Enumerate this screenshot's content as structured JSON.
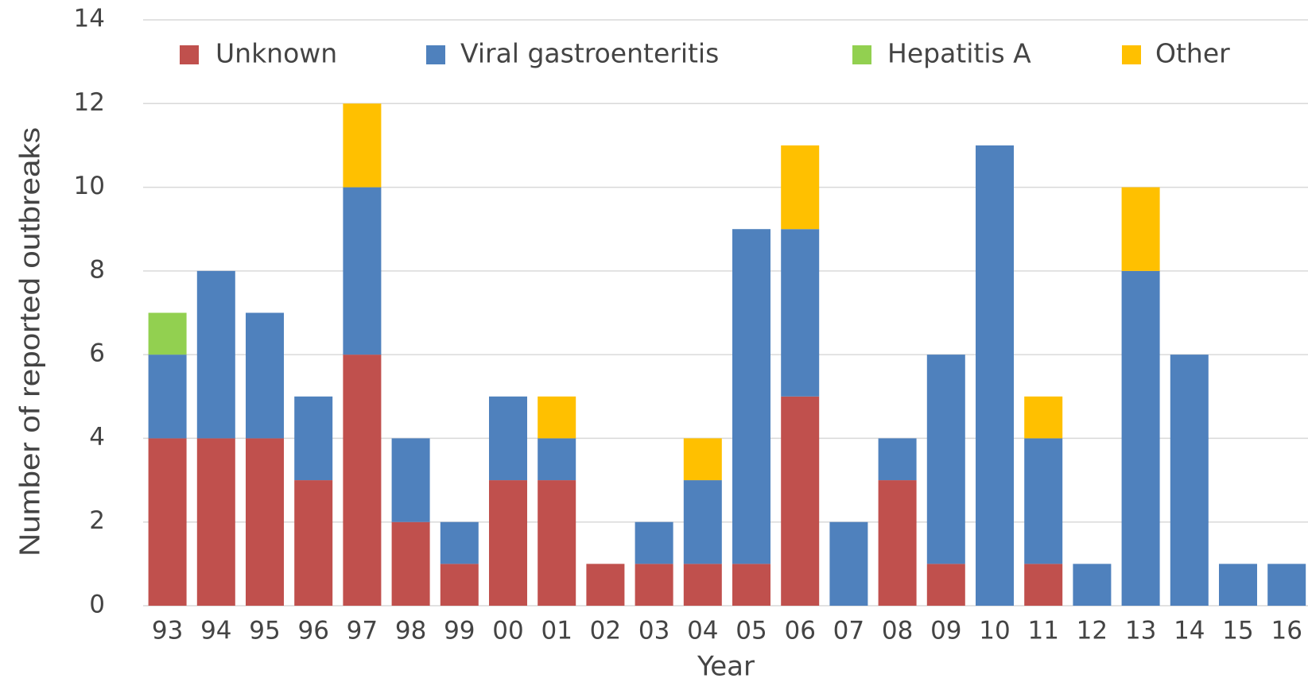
{
  "chart_data": {
    "type": "stacked_bar",
    "x_label": "Year",
    "y_label": "Number of reported outbreaks",
    "categories": [
      "93",
      "94",
      "95",
      "96",
      "97",
      "98",
      "99",
      "00",
      "01",
      "02",
      "03",
      "04",
      "05",
      "06",
      "07",
      "08",
      "09",
      "10",
      "11",
      "12",
      "13",
      "14",
      "15",
      "16"
    ],
    "series": [
      {
        "name": "Unknown",
        "color": "#c0504d",
        "values": [
          4,
          4,
          4,
          3,
          6,
          2,
          1,
          3,
          3,
          1,
          1,
          1,
          1,
          5,
          0,
          3,
          1,
          0,
          1,
          0,
          0,
          0,
          0,
          0
        ]
      },
      {
        "name": "Viral gastroenteritis",
        "color": "#4f81bd",
        "values": [
          2,
          4,
          3,
          2,
          4,
          2,
          1,
          2,
          1,
          0,
          1,
          2,
          8,
          4,
          2,
          1,
          5,
          11,
          3,
          1,
          8,
          6,
          1,
          1
        ]
      },
      {
        "name": "Hepatitis A",
        "color": "#92d050",
        "values": [
          1,
          0,
          0,
          0,
          0,
          0,
          0,
          0,
          0,
          0,
          0,
          0,
          0,
          0,
          0,
          0,
          0,
          0,
          0,
          0,
          0,
          0,
          0,
          0
        ]
      },
      {
        "name": "Other",
        "color": "#ffc000",
        "values": [
          0,
          0,
          0,
          0,
          2,
          0,
          0,
          0,
          1,
          0,
          0,
          1,
          0,
          2,
          0,
          0,
          0,
          0,
          1,
          0,
          2,
          0,
          0,
          0
        ]
      }
    ],
    "ylim": [
      0,
      14
    ],
    "yticks": [
      0,
      2,
      4,
      6,
      8,
      10,
      12,
      14
    ],
    "grid": true,
    "legend": "top"
  }
}
